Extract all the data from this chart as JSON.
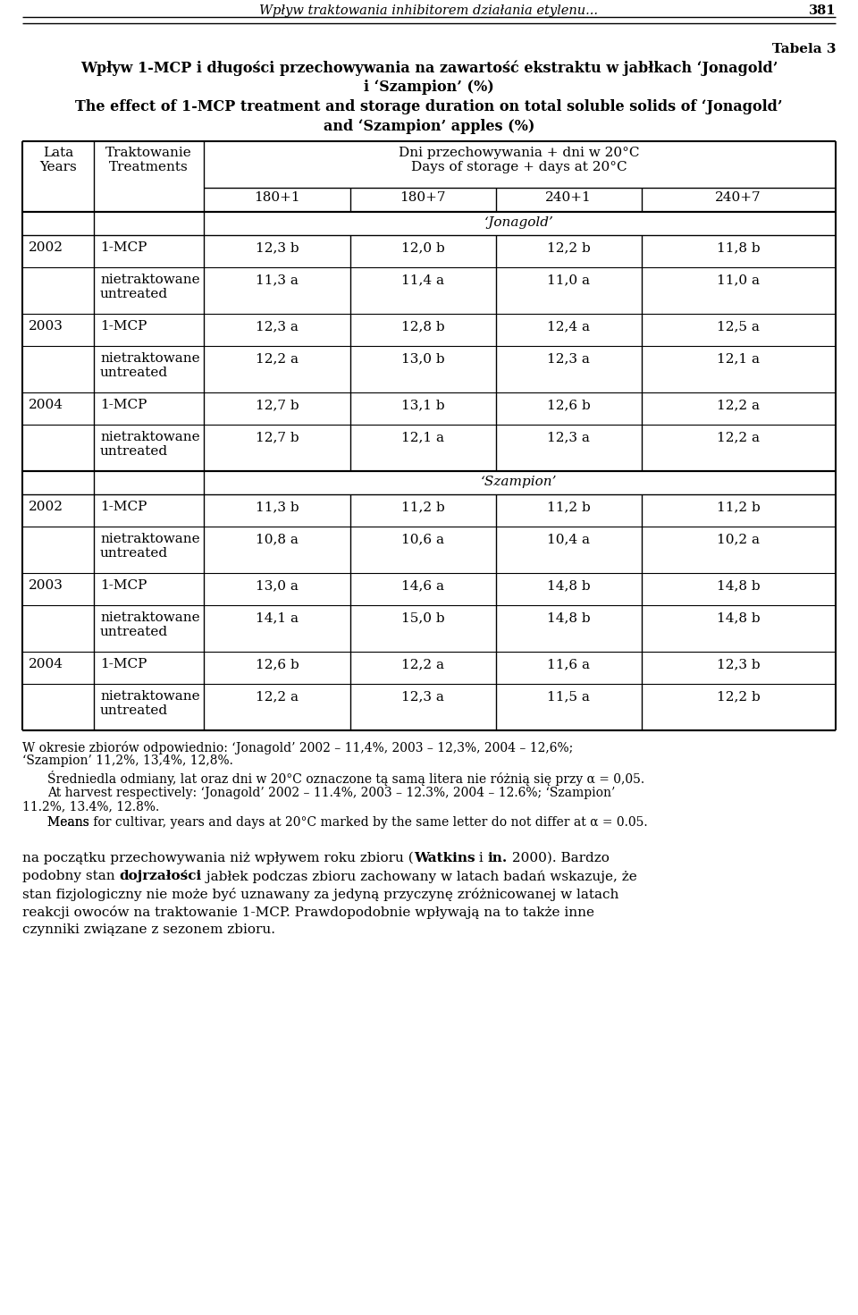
{
  "page_header_italic": "Wpływ traktowania inhibitorem działania etylenu...",
  "page_number": "381",
  "tabela_label": "Tabela 3",
  "title_pl_line1": "Wpływ 1-MCP i długości przechowywania na zawartość ekstraktu w jabłkach ‘Jonagold’",
  "title_pl_line2": "i ‘Szampion’ (%)",
  "title_en_line1": "The effect of 1-MCP treatment and storage duration on total soluble solids of ‘Jonagold’",
  "title_en_line2": "and ‘Szampion’ apples (%)",
  "col_header_pl_line1": "Dni przechowywania + dni w 20°C",
  "col_header_pl_line2": "Days of storage + days at 20°C",
  "col1_header_line1": "Lata",
  "col1_header_line2": "Years",
  "col2_header_line1": "Traktowanie",
  "col2_header_line2": "Treatments",
  "sub_cols": [
    "180+1",
    "180+7",
    "240+1",
    "240+7"
  ],
  "jonagold_label": "‘Jonagold’",
  "szampion_label": "‘Szampion’",
  "jonagold_rows": [
    {
      "year": "2002",
      "treatment": "1-MCP",
      "v1": "12,3 b",
      "v2": "12,0 b",
      "v3": "12,2 b",
      "v4": "11,8 b"
    },
    {
      "year": "",
      "treatment": "nietraktowane\nuntreated",
      "v1": "11,3 a",
      "v2": "11,4 a",
      "v3": "11,0 a",
      "v4": "11,0 a"
    },
    {
      "year": "2003",
      "treatment": "1-MCP",
      "v1": "12,3 a",
      "v2": "12,8 b",
      "v3": "12,4 a",
      "v4": "12,5 a"
    },
    {
      "year": "",
      "treatment": "nietraktowane\nuntreated",
      "v1": "12,2 a",
      "v2": "13,0 b",
      "v3": "12,3 a",
      "v4": "12,1 a"
    },
    {
      "year": "2004",
      "treatment": "1-MCP",
      "v1": "12,7 b",
      "v2": "13,1 b",
      "v3": "12,6 b",
      "v4": "12,2 a"
    },
    {
      "year": "",
      "treatment": "nietraktowane\nuntreated",
      "v1": "12,7 b",
      "v2": "12,1 a",
      "v3": "12,3 a",
      "v4": "12,2 a"
    }
  ],
  "szampion_rows": [
    {
      "year": "2002",
      "treatment": "1-MCP",
      "v1": "11,3 b",
      "v2": "11,2 b",
      "v3": "11,2 b",
      "v4": "11,2 b"
    },
    {
      "year": "",
      "treatment": "nietraktowane\nuntreated",
      "v1": "10,8 a",
      "v2": "10,6 a",
      "v3": "10,4 a",
      "v4": "10,2 a"
    },
    {
      "year": "2003",
      "treatment": "1-MCP",
      "v1": "13,0 a",
      "v2": "14,6 a",
      "v3": "14,8 b",
      "v4": "14,8 b"
    },
    {
      "year": "",
      "treatment": "nietraktowane\nuntreated",
      "v1": "14,1 a",
      "v2": "15,0 b",
      "v3": "14,8 b",
      "v4": "14,8 b"
    },
    {
      "year": "2004",
      "treatment": "1-MCP",
      "v1": "12,6 b",
      "v2": "12,2 a",
      "v3": "11,6 a",
      "v4": "12,3 b"
    },
    {
      "year": "",
      "treatment": "nietraktowane\nuntreated",
      "v1": "12,2 a",
      "v2": "12,3 a",
      "v3": "11,5 a",
      "v4": "12,2 b"
    }
  ],
  "footnote1": "W okresie zbiorów odpowiednio: ‘Jonagold’ 2002 – 11,4%, 2003 – 12,3%, 2004 – 12,6%;",
  "footnote2": "‘Szampion’ 11,2%, 13,4%, 12,8%.",
  "footnote3": "Średniedla odmiany, lat oraz dni w 20°C oznaczone tą samą litera nie różnią się przy α = 0,05.",
  "footnote4_pre": "At harvest respectively: ‘Jonagold’ 2002 – 11.4%, 2003 – 12.3%, 2004 – 12.6%; ‘Szampion’",
  "footnote5": "11.2%, 13.4%, 12.8%.",
  "footnote6_pre": "Means ",
  "footnote6_bold": "for",
  "footnote6_post": " cultivar, years and days at 20°C marked by the same letter ",
  "footnote6_bold2": "do",
  "footnote6_post2": " not differ at α = 0.05.",
  "para_line1_pre": "na początku przechowywania niż wpływem roku zbioru (",
  "para_line1_bold1": "Watkins",
  "para_line1_mid": " i ",
  "para_line1_bold2": "in.",
  "para_line1_post": " 2000). Bardzo",
  "para_line2_pre": "podobny stan ",
  "para_line2_bold": "dojrzałości",
  "para_line2_post": " jabłek podczas zbioru zachowany w latach badań wskazuje, że",
  "para_line3": "stan fizjologiczny nie może być uznawany za jedyną przyczynę zróżnicowanej w latach",
  "para_line4": "reakcji owoców na traktowanie 1-MCP. Prawdopodobnie wpływają na to także inne",
  "para_line5": "czynniki związane z sezonem zbioru."
}
